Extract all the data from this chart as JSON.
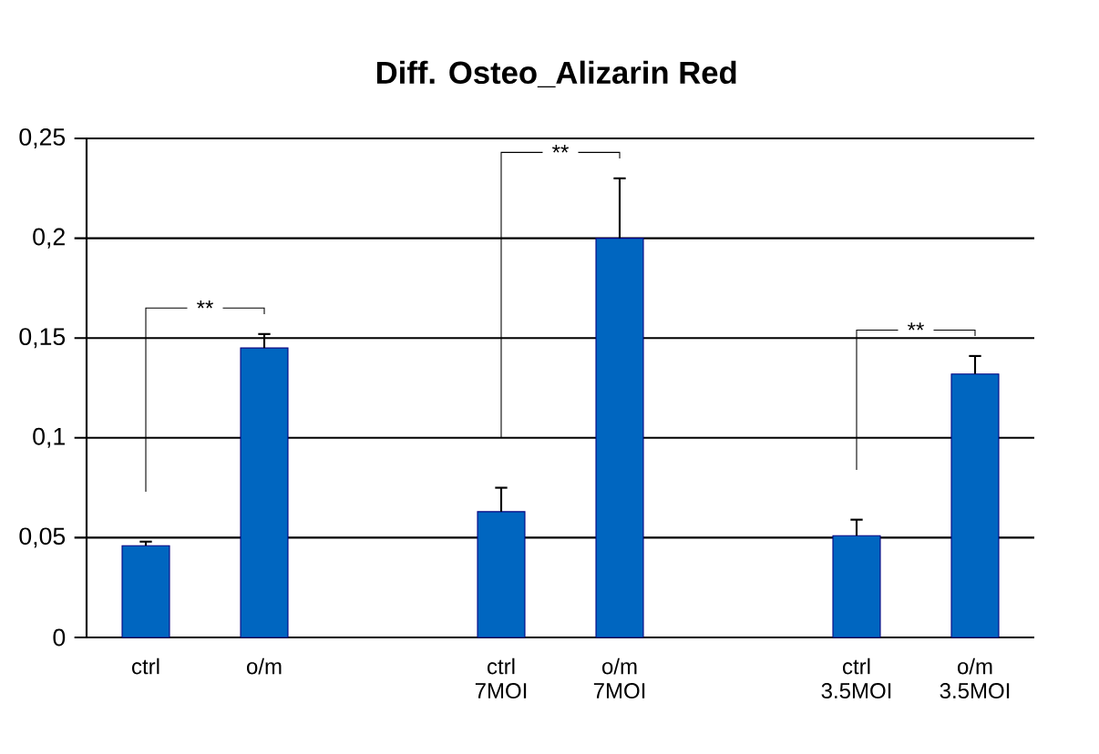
{
  "chart_data": {
    "type": "bar",
    "title": "Diff. Osteo_Alizarin Red",
    "categories": [
      "ctrl",
      "o/m",
      null,
      "ctrl 7MOI",
      "o/m 7MOI",
      null,
      "ctrl 3.5MOI",
      "o/m 3.5MOI"
    ],
    "values": [
      0.046,
      0.145,
      null,
      0.063,
      0.2,
      null,
      0.051,
      0.132
    ],
    "errors": [
      [
        0.046,
        0.048
      ],
      [
        0.145,
        0.152
      ],
      null,
      [
        0.063,
        0.075
      ],
      [
        0.2,
        0.23
      ],
      null,
      [
        0.051,
        0.059
      ],
      [
        0.132,
        0.141
      ]
    ],
    "color": "#0066c0",
    "ylim": [
      0,
      0.25
    ],
    "yticks": [
      0,
      {
        "value": 0.05,
        "label": "0,05"
      },
      {
        "value": 0.1,
        "label": "0,1"
      },
      {
        "value": 0.15,
        "label": "0,15"
      },
      {
        "value": 0.2,
        "label": "0,2"
      },
      {
        "value": 0.25,
        "label": "0,25"
      }
    ],
    "grid": "y",
    "annotations": [
      "**",
      "**",
      "**"
    ]
  }
}
